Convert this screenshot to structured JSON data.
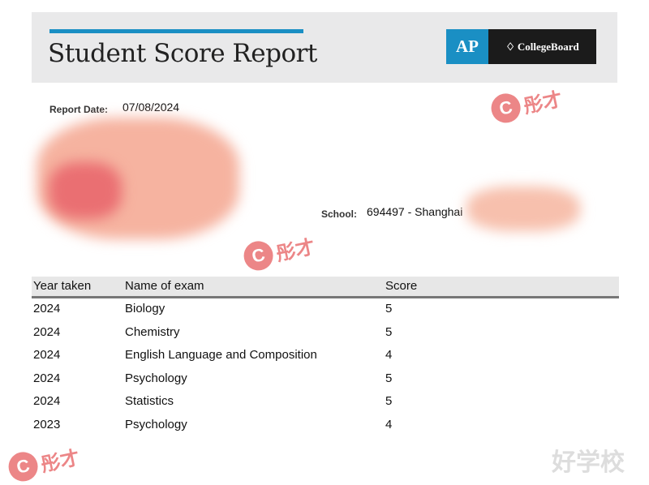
{
  "header": {
    "title": "Student Score Report",
    "logo_ap": "AP",
    "logo_cb": "CollegeBoard"
  },
  "report": {
    "date_label": "Report Date:",
    "date": "07/08/2024",
    "school_label": "School:",
    "school": "694497 - Shanghai"
  },
  "table": {
    "headers": [
      "Year taken",
      "Name of exam",
      "Score"
    ],
    "rows": [
      [
        "2024",
        "Biology",
        "5"
      ],
      [
        "2024",
        "Chemistry",
        "5"
      ],
      [
        "2024",
        "English Language and Composition",
        "4"
      ],
      [
        "2024",
        "Psychology",
        "5"
      ],
      [
        "2024",
        "Statistics",
        "5"
      ],
      [
        "2023",
        "Psychology",
        "4"
      ]
    ]
  },
  "watermark": {
    "text": "彤才",
    "site": "好学校"
  },
  "colors": {
    "accent": "#1a8fc4",
    "header_bg": "#e9e9ea",
    "watermark": "#e8686a"
  }
}
